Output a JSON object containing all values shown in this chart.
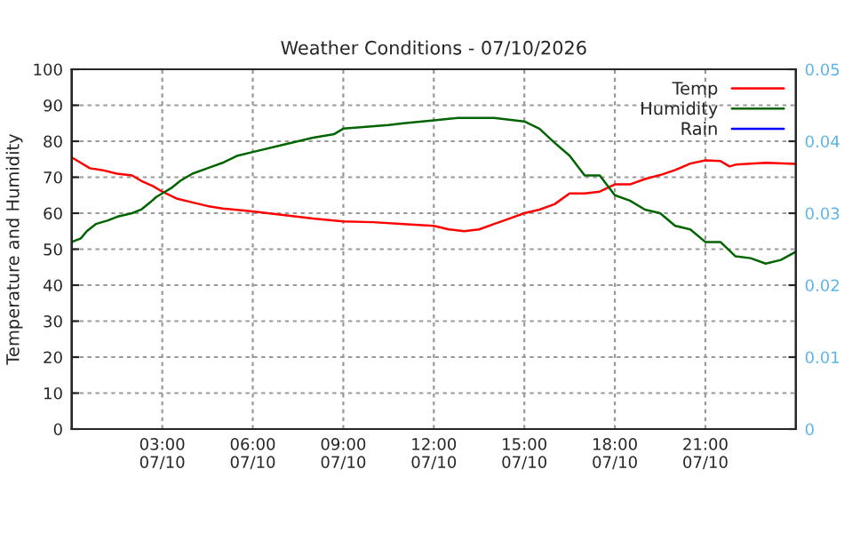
{
  "chart_data": {
    "type": "line",
    "title": "Weather Conditions - 07/10/2026",
    "ylabel": "Temperature and Humidity",
    "xlim": [
      "2026-07-10T00:00",
      "2026-07-11T00:00"
    ],
    "xticks": [
      {
        "value": "2026-07-10T03:00",
        "label": "03:00\n07/10"
      },
      {
        "value": "2026-07-10T06:00",
        "label": "06:00\n07/10"
      },
      {
        "value": "2026-07-10T09:00",
        "label": "09:00\n07/10"
      },
      {
        "value": "2026-07-10T12:00",
        "label": "12:00\n07/10"
      },
      {
        "value": "2026-07-10T15:00",
        "label": "15:00\n07/10"
      },
      {
        "value": "2026-07-10T18:00",
        "label": "18:00\n07/10"
      },
      {
        "value": "2026-07-10T21:00",
        "label": "21:00\n07/10"
      }
    ],
    "ylim": [
      0,
      100
    ],
    "yticks": [
      0,
      10,
      20,
      30,
      40,
      50,
      60,
      70,
      80,
      90,
      100
    ],
    "y2lim": [
      0,
      0.05
    ],
    "y2ticks": [
      0,
      0.01,
      0.02,
      0.03,
      0.04,
      0.05
    ],
    "grid": true,
    "legend": "top right",
    "series": [
      {
        "name": "Temp",
        "color": "#ff0000",
        "x": [
          "2026-07-10T00:00",
          "2026-07-10T00:18",
          "2026-07-10T00:36",
          "2026-07-10T01:00",
          "2026-07-10T01:30",
          "2026-07-10T02:00",
          "2026-07-10T02:18",
          "2026-07-10T02:42",
          "2026-07-10T03:00",
          "2026-07-10T03:30",
          "2026-07-10T04:00",
          "2026-07-10T04:30",
          "2026-07-10T05:00",
          "2026-07-10T06:00",
          "2026-07-10T07:00",
          "2026-07-10T08:00",
          "2026-07-10T09:00",
          "2026-07-10T10:00",
          "2026-07-10T11:00",
          "2026-07-10T12:00",
          "2026-07-10T12:30",
          "2026-07-10T13:00",
          "2026-07-10T13:30",
          "2026-07-10T14:00",
          "2026-07-10T14:30",
          "2026-07-10T15:00",
          "2026-07-10T15:30",
          "2026-07-10T16:00",
          "2026-07-10T16:30",
          "2026-07-10T17:00",
          "2026-07-10T17:30",
          "2026-07-10T18:00",
          "2026-07-10T18:30",
          "2026-07-10T19:00",
          "2026-07-10T19:30",
          "2026-07-10T20:00",
          "2026-07-10T20:30",
          "2026-07-10T21:00",
          "2026-07-10T21:30",
          "2026-07-10T21:48",
          "2026-07-10T22:00",
          "2026-07-10T23:00",
          "2026-07-11T00:00"
        ],
        "values": [
          75.5,
          74,
          72.5,
          72,
          71,
          70.5,
          69,
          67.5,
          66,
          64,
          63,
          62,
          61.3,
          60.5,
          59.5,
          58.5,
          57.7,
          57.5,
          57,
          56.5,
          55.5,
          55,
          55.5,
          57,
          58.5,
          60,
          61,
          62.5,
          65.5,
          65.5,
          66,
          68,
          68,
          69.5,
          70.6,
          72,
          73.8,
          74.7,
          74.5,
          73,
          73.5,
          74,
          73.7
        ]
      },
      {
        "name": "Humidity",
        "color": "#006400",
        "x": [
          "2026-07-10T00:00",
          "2026-07-10T00:18",
          "2026-07-10T00:30",
          "2026-07-10T00:48",
          "2026-07-10T01:12",
          "2026-07-10T01:30",
          "2026-07-10T02:00",
          "2026-07-10T02:18",
          "2026-07-10T02:36",
          "2026-07-10T02:48",
          "2026-07-10T03:00",
          "2026-07-10T03:18",
          "2026-07-10T03:36",
          "2026-07-10T04:00",
          "2026-07-10T04:30",
          "2026-07-10T05:00",
          "2026-07-10T05:30",
          "2026-07-10T06:00",
          "2026-07-10T07:00",
          "2026-07-10T08:00",
          "2026-07-10T08:42",
          "2026-07-10T09:00",
          "2026-07-10T10:30",
          "2026-07-10T11:00",
          "2026-07-10T12:00",
          "2026-07-10T12:48",
          "2026-07-10T14:00",
          "2026-07-10T14:30",
          "2026-07-10T15:00",
          "2026-07-10T15:30",
          "2026-07-10T16:00",
          "2026-07-10T16:30",
          "2026-07-10T17:00",
          "2026-07-10T17:30",
          "2026-07-10T18:00",
          "2026-07-10T18:30",
          "2026-07-10T19:00",
          "2026-07-10T19:30",
          "2026-07-10T20:00",
          "2026-07-10T20:30",
          "2026-07-10T21:00",
          "2026-07-10T21:30",
          "2026-07-10T22:00",
          "2026-07-10T22:30",
          "2026-07-10T23:00",
          "2026-07-10T23:30",
          "2026-07-11T00:00"
        ],
        "values": [
          52,
          53,
          55,
          57,
          58,
          59,
          60,
          61,
          63,
          64.5,
          65.5,
          67,
          69,
          71,
          72.5,
          74,
          76,
          77,
          79,
          81,
          82,
          83.5,
          84.5,
          85,
          85.8,
          86.5,
          86.5,
          86,
          85.5,
          83.5,
          79.6,
          76,
          70.5,
          70.5,
          65,
          63.5,
          61,
          60,
          56.5,
          55.5,
          52,
          52,
          48,
          47.5,
          46,
          47,
          49.3
        ]
      },
      {
        "name": "Rain",
        "color": "#0000ff"
      }
    ]
  }
}
